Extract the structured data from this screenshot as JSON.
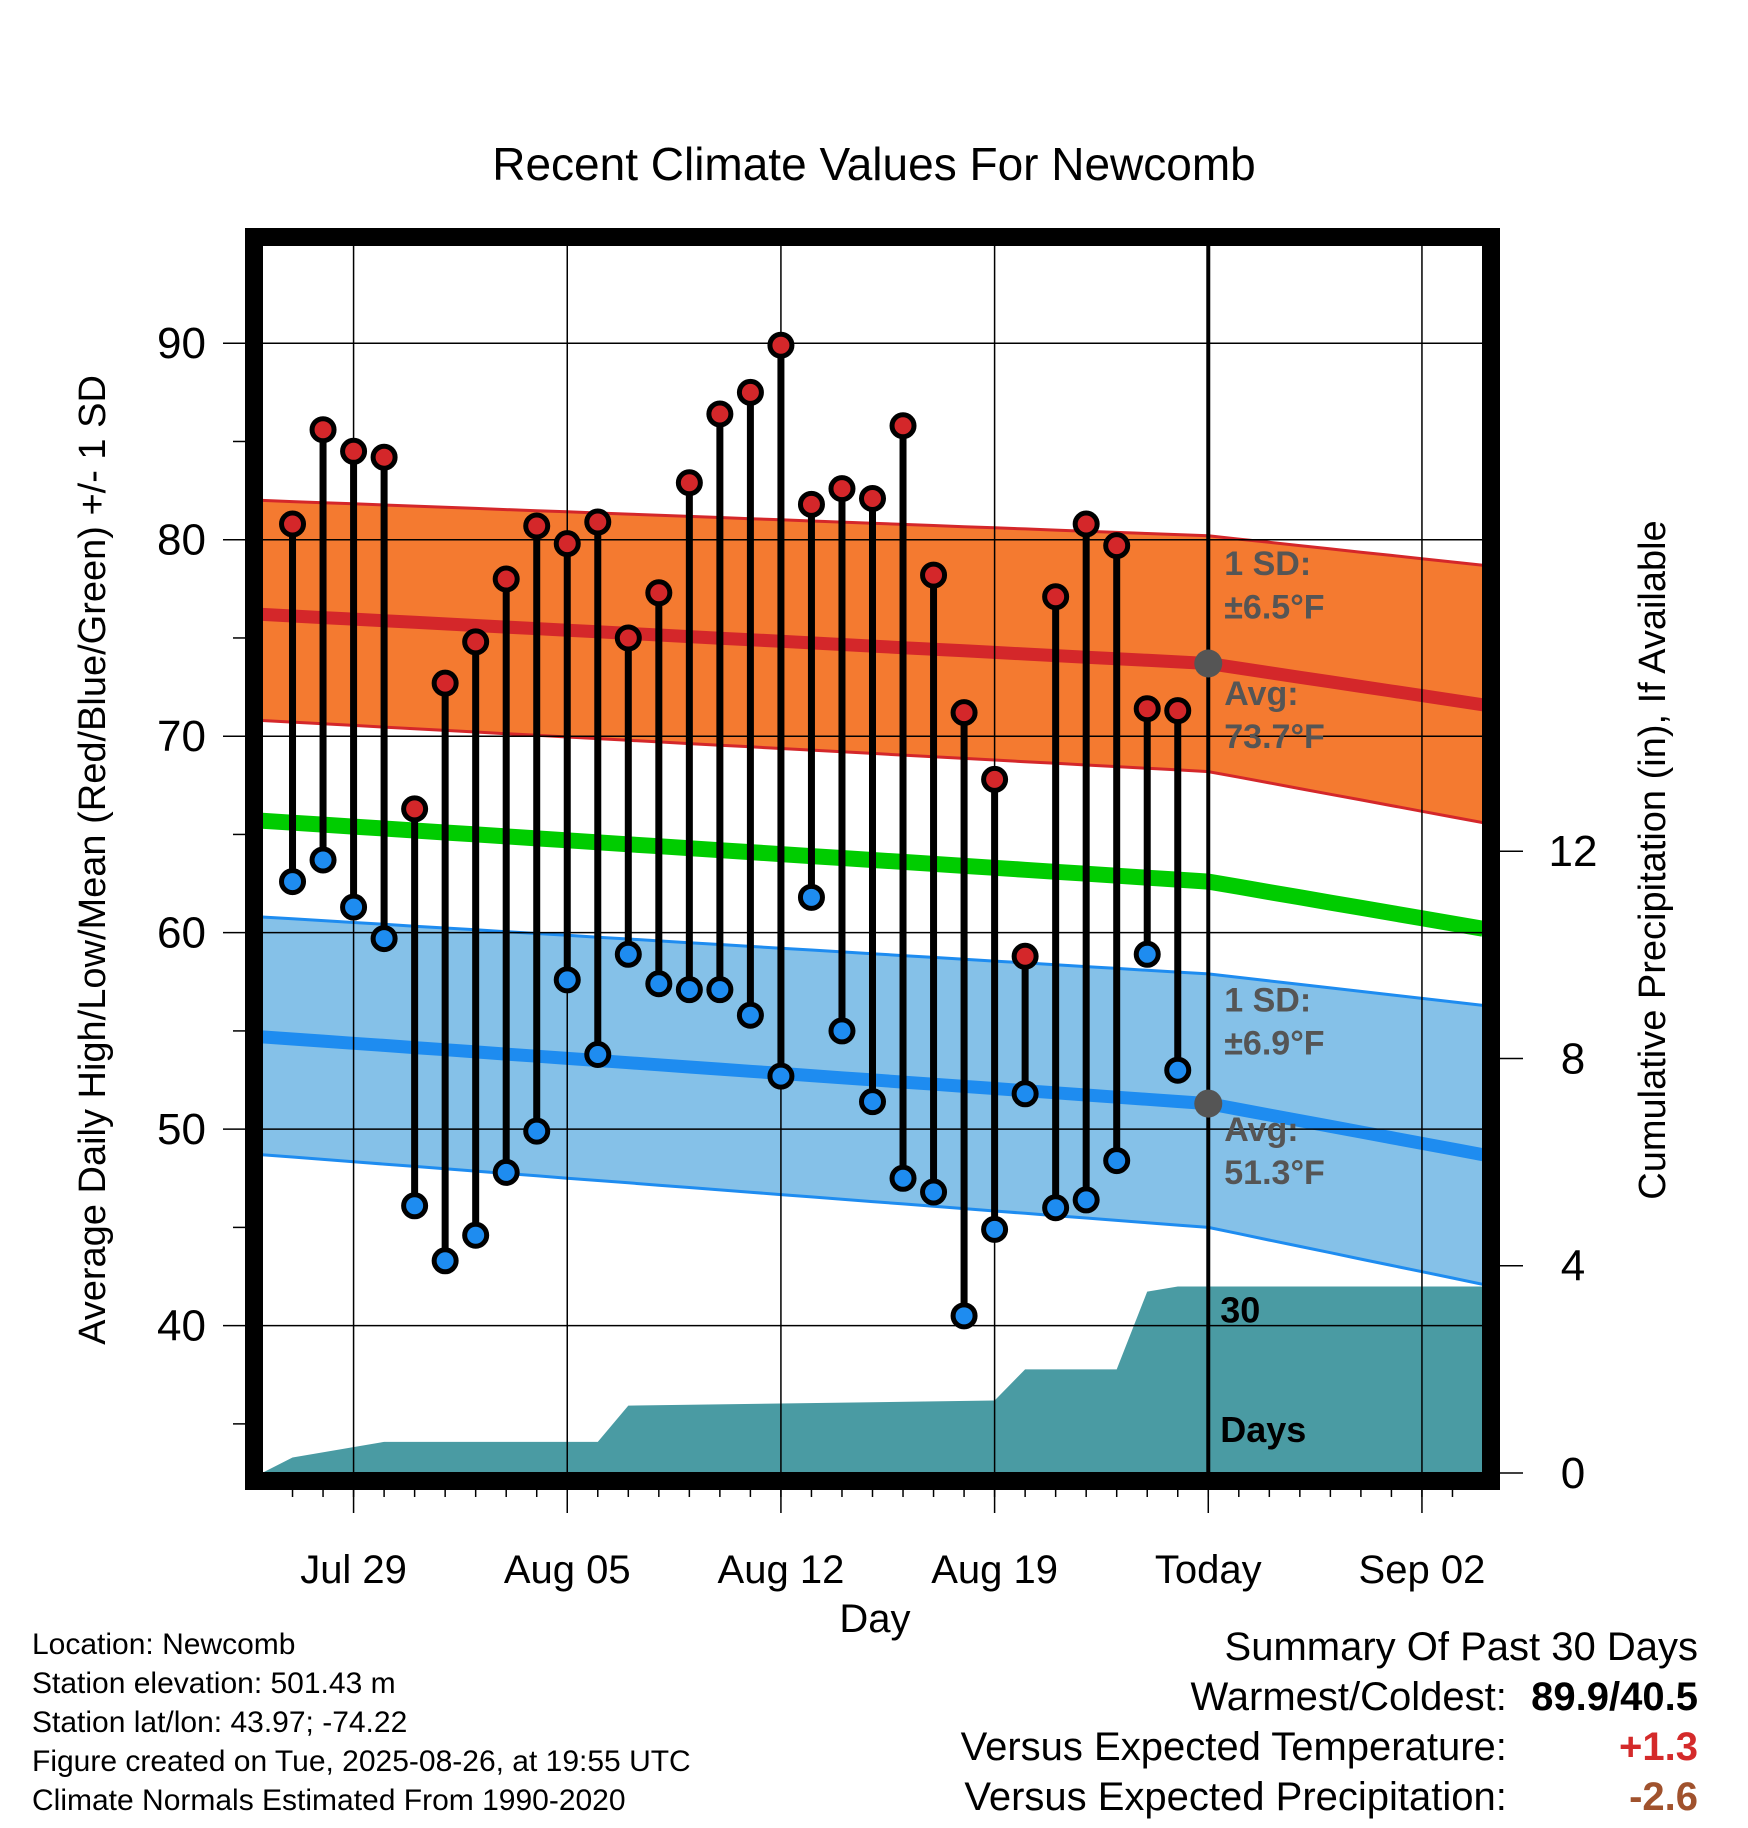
{
  "chart_data": {
    "type": "line",
    "title": "Recent Climate Values For Newcomb",
    "xlabel": "Day",
    "ylabel": "Average Daily High/Low/Mean (Red/Blue/Green) +/- 1 SD",
    "y2label": "Cumulative Precipitation (in), If Available",
    "x_ticks": [
      "Jul 29",
      "Aug 05",
      "Aug 12",
      "Aug 19",
      "Today",
      "Sep 02"
    ],
    "y_ticks": [
      40,
      50,
      60,
      70,
      80,
      90
    ],
    "y2_ticks": [
      0,
      4,
      8,
      12
    ],
    "ylim": [
      32.5,
      95
    ],
    "y2lim": [
      0,
      23.7
    ],
    "xlim": [
      "Jul 26",
      "Sep 04"
    ],
    "today": "Aug 26",
    "grid": true,
    "observed": {
      "dates": [
        "Jul 27",
        "Jul 28",
        "Jul 29",
        "Jul 30",
        "Jul 31",
        "Aug 01",
        "Aug 02",
        "Aug 03",
        "Aug 04",
        "Aug 05",
        "Aug 06",
        "Aug 07",
        "Aug 08",
        "Aug 09",
        "Aug 10",
        "Aug 11",
        "Aug 12",
        "Aug 13",
        "Aug 14",
        "Aug 15",
        "Aug 16",
        "Aug 17",
        "Aug 18",
        "Aug 19",
        "Aug 20",
        "Aug 21",
        "Aug 22",
        "Aug 23",
        "Aug 24",
        "Aug 25"
      ],
      "highs": [
        80.8,
        85.6,
        84.5,
        84.2,
        66.3,
        72.7,
        74.8,
        78.0,
        80.7,
        79.8,
        80.9,
        75.0,
        77.3,
        82.9,
        86.4,
        87.5,
        89.9,
        81.8,
        82.6,
        82.1,
        85.8,
        78.2,
        71.2,
        67.8,
        58.8,
        77.1,
        80.8,
        79.7,
        71.4,
        71.3
      ],
      "lows": [
        62.6,
        63.7,
        61.3,
        59.7,
        46.1,
        43.3,
        44.6,
        47.8,
        49.9,
        57.6,
        53.8,
        58.9,
        57.4,
        57.1,
        57.1,
        55.8,
        52.7,
        61.8,
        55.0,
        51.4,
        47.5,
        46.8,
        40.5,
        44.9,
        51.8,
        46.0,
        46.4,
        48.4,
        58.9,
        53.0
      ]
    },
    "normals": {
      "dates": [
        "Jul 26",
        "Aug 26",
        "Sep 04"
      ],
      "high_avg": [
        76.2,
        73.7,
        71.6
      ],
      "high_sd_upper": [
        82.0,
        80.2,
        78.7
      ],
      "high_sd_lower": [
        70.8,
        68.2,
        65.6
      ],
      "mean": [
        65.7,
        62.6,
        60.2
      ],
      "low_avg": [
        54.7,
        51.3,
        48.7
      ],
      "low_sd_upper": [
        60.8,
        57.9,
        56.3
      ],
      "low_sd_lower": [
        48.7,
        45.0,
        42.1
      ]
    },
    "precip": {
      "dates": [
        "Jul 26",
        "Jul 27",
        "Jul 30",
        "Aug 06",
        "Aug 07",
        "Aug 19",
        "Aug 20",
        "Aug 23",
        "Aug 24",
        "Aug 25",
        "Sep 04"
      ],
      "cumulative": [
        0.0,
        0.3,
        0.6,
        0.6,
        1.3,
        1.4,
        2.0,
        2.0,
        3.5,
        3.6,
        3.6
      ]
    },
    "annotations": {
      "high_sd": "1 SD:\n±6.5°F",
      "high_sd_line1": "1 SD:",
      "high_sd_line2": "±6.5°F",
      "high_avg_line1": "Avg:",
      "high_avg_line2": "73.7°F",
      "low_sd_line1": "1 SD:",
      "low_sd_line2": "±6.9°F",
      "low_avg_line1": "Avg:",
      "low_avg_line2": "51.3°F",
      "days_line1": "30",
      "days_line2": "Days"
    },
    "colors": {
      "high_band": "#f47a30",
      "high_line": "#d4272a",
      "high_dot": "#d4272a",
      "low_band": "#85c1e8",
      "low_line": "#1e8cf0",
      "low_dot": "#1e8cf0",
      "mean_line": "#00cc00",
      "precip": "#4a9ba3",
      "annotation": "#555555",
      "warm_text": "#d42a2a",
      "dry_text": "#a0522d"
    }
  },
  "footer": {
    "location": "Location: Newcomb",
    "elevation": "Station elevation: 501.43 m",
    "latlon": "Station lat/lon: 43.97; -74.22",
    "created": "Figure created on Tue, 2025-08-26, at 19:55 UTC",
    "normals": "Climate Normals Estimated From 1990-2020"
  },
  "summary": {
    "heading": "Summary Of Past 30 Days",
    "warm_cold_label": "Warmest/Coldest:",
    "warm_cold_value": "89.9/40.5",
    "temp_label": "Versus Expected Temperature:",
    "temp_value": "+1.3",
    "precip_label": "Versus Expected Precipitation:",
    "precip_value": "-2.6"
  }
}
